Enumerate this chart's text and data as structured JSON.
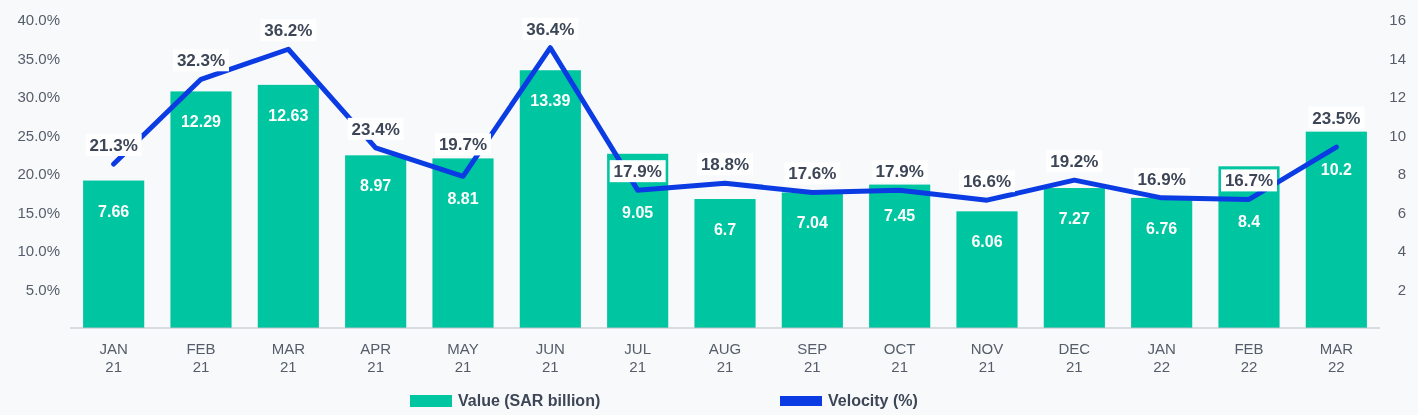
{
  "chart_data": {
    "type": "bar",
    "categories": [
      "JAN 21",
      "FEB 21",
      "MAR 21",
      "APR 21",
      "MAY 21",
      "JUN 21",
      "JUL 21",
      "AUG 21",
      "SEP 21",
      "OCT 21",
      "NOV 21",
      "DEC 21",
      "JAN 22",
      "FEB 22",
      "MAR 22"
    ],
    "series": [
      {
        "name": "Value (SAR billion)",
        "axis": "y2",
        "color": "#00c5a1",
        "values": [
          7.66,
          12.29,
          12.63,
          8.97,
          8.81,
          13.39,
          9.05,
          6.7,
          7.04,
          7.45,
          6.06,
          7.27,
          6.76,
          8.4,
          10.2
        ],
        "value_labels": [
          "7.66",
          "12.29",
          "12.63",
          "8.97",
          "8.81",
          "13.39",
          "9.05",
          "6.7",
          "7.04",
          "7.45",
          "6.06",
          "7.27",
          "6.76",
          "8.4",
          "10.2"
        ]
      },
      {
        "name": "Velocity (%)",
        "type": "line",
        "axis": "y",
        "color": "#0b3be3",
        "values": [
          21.3,
          32.3,
          36.2,
          23.4,
          19.7,
          36.4,
          17.9,
          18.8,
          17.6,
          17.9,
          16.6,
          19.2,
          16.9,
          16.7,
          23.5
        ],
        "value_labels": [
          "21.3%",
          "32.3%",
          "36.2%",
          "23.4%",
          "19.7%",
          "36.4%",
          "17.9%",
          "18.8%",
          "17.6%",
          "17.9%",
          "16.6%",
          "19.2%",
          "16.9%",
          "16.7%",
          "23.5%"
        ]
      }
    ],
    "ylim": [
      0,
      40
    ],
    "yticks": [
      {
        "value": 5,
        "label": "5.0%"
      },
      {
        "value": 10,
        "label": "10.0%"
      },
      {
        "value": 15,
        "label": "15.0%"
      },
      {
        "value": 20,
        "label": "20.0%"
      },
      {
        "value": 25,
        "label": "25.0%"
      },
      {
        "value": 30,
        "label": "30.0%"
      },
      {
        "value": 35,
        "label": "35.0%"
      },
      {
        "value": 40,
        "label": "40.0%"
      }
    ],
    "y2lim": [
      0,
      16
    ],
    "y2ticks": [
      2,
      4,
      6,
      8,
      10,
      12,
      14,
      16
    ],
    "legend": "bottom",
    "grid": false,
    "marker": "none",
    "line_style": "solid"
  }
}
